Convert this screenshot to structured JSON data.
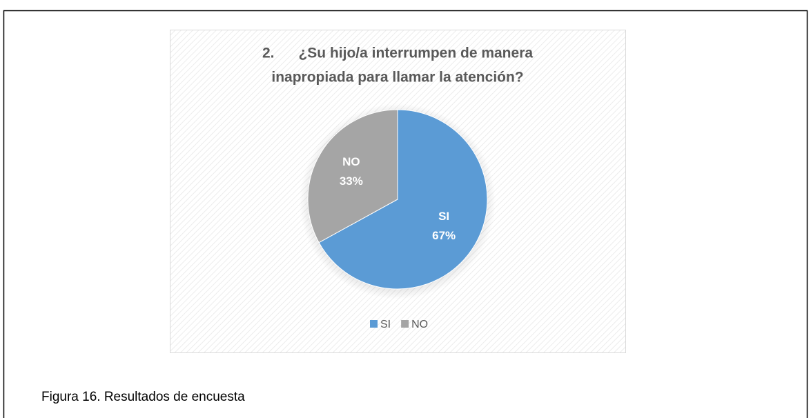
{
  "chart_data": {
    "type": "pie",
    "title": [
      "2.      ¿Su hijo/a interrumpen de manera",
      "inapropiada para llamar la atención?"
    ],
    "categories": [
      "SI",
      "NO"
    ],
    "values": [
      67,
      33
    ],
    "value_labels": [
      "67%",
      "33%"
    ],
    "colors": [
      "#5b9bd5",
      "#a5a5a5"
    ],
    "legend": "bottom"
  },
  "caption": "Figura 16. Resultados de encuesta"
}
